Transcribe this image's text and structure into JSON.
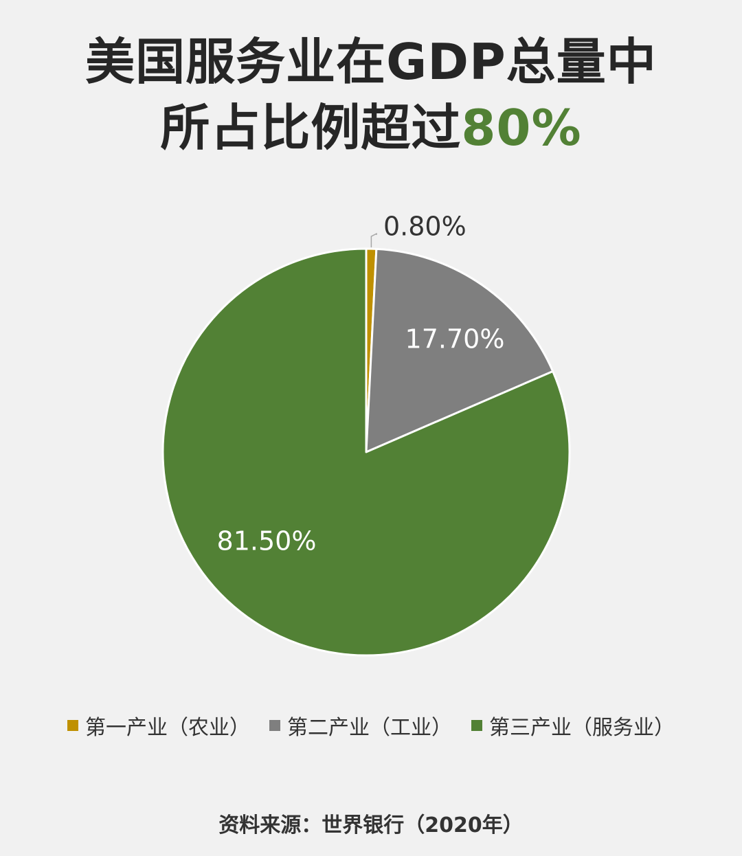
{
  "title": {
    "line1": "美国服务业在GDP总量中",
    "line2_prefix": "所占比例超过",
    "line2_highlight": "80%"
  },
  "colors": {
    "background": "#f1f1f1",
    "title": "#262626",
    "accent": "#528135"
  },
  "chart_data": {
    "type": "pie",
    "start_angle_deg": 0,
    "direction": "clockwise",
    "legend_position": "bottom",
    "slices": [
      {
        "name": "第一产业（农业）",
        "value": 0.8,
        "label": "0.80%",
        "color": "#bf9000"
      },
      {
        "name": "第二产业（工业）",
        "value": 17.7,
        "label": "17.70%",
        "color": "#7f7f7f"
      },
      {
        "name": "第三产业（服务业）",
        "value": 81.5,
        "label": "81.50%",
        "color": "#528135"
      }
    ]
  },
  "source": "资料来源：世界银行（2020年）"
}
